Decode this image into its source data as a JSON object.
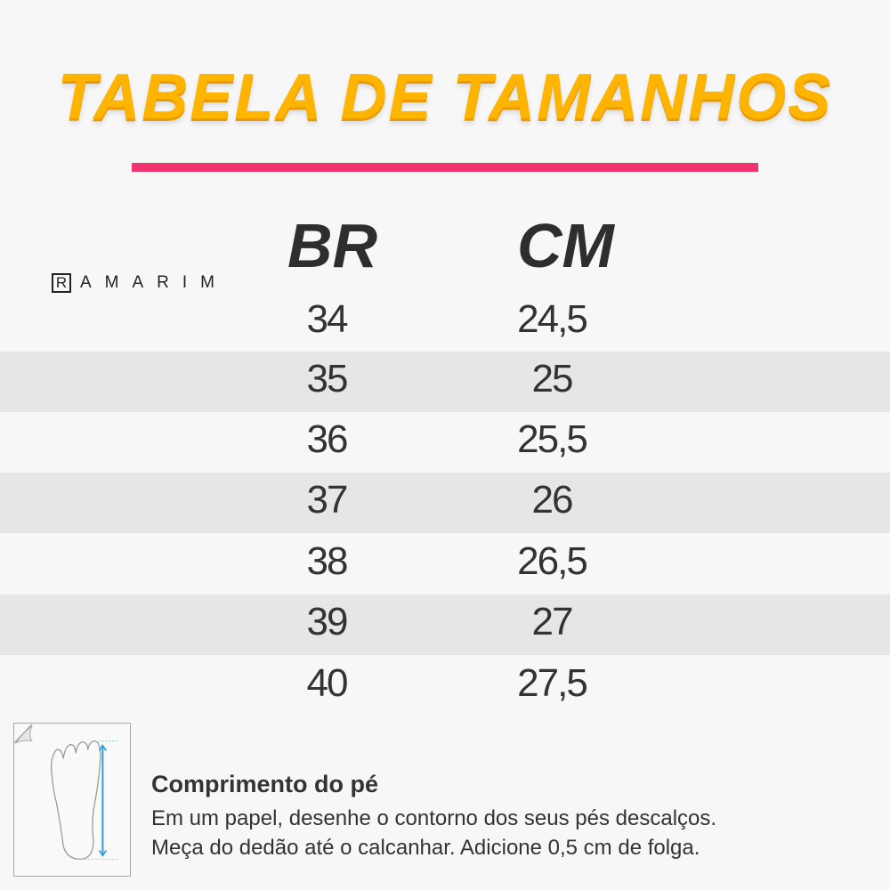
{
  "title": "TABELA DE TAMANHOS",
  "accent_colors": {
    "title": "#ffb400",
    "divider": "#f2326f",
    "arrow": "#2b9bd6"
  },
  "brand": {
    "logo_letter": "R",
    "name": "AMARIM"
  },
  "table": {
    "headers": [
      "BR",
      "CM"
    ],
    "rows": [
      [
        "34",
        "24,5"
      ],
      [
        "35",
        "25"
      ],
      [
        "36",
        "25,5"
      ],
      [
        "37",
        "26"
      ],
      [
        "38",
        "26,5"
      ],
      [
        "39",
        "27"
      ],
      [
        "40",
        "27,5"
      ]
    ]
  },
  "instructions": {
    "icon": "foot-measure-icon",
    "title": "Comprimento do pé",
    "lines": [
      "Em um papel, desenhe o contorno dos seus pés descalços.",
      "Meça do dedão até o calcanhar. Adicione 0,5 cm de folga."
    ]
  }
}
